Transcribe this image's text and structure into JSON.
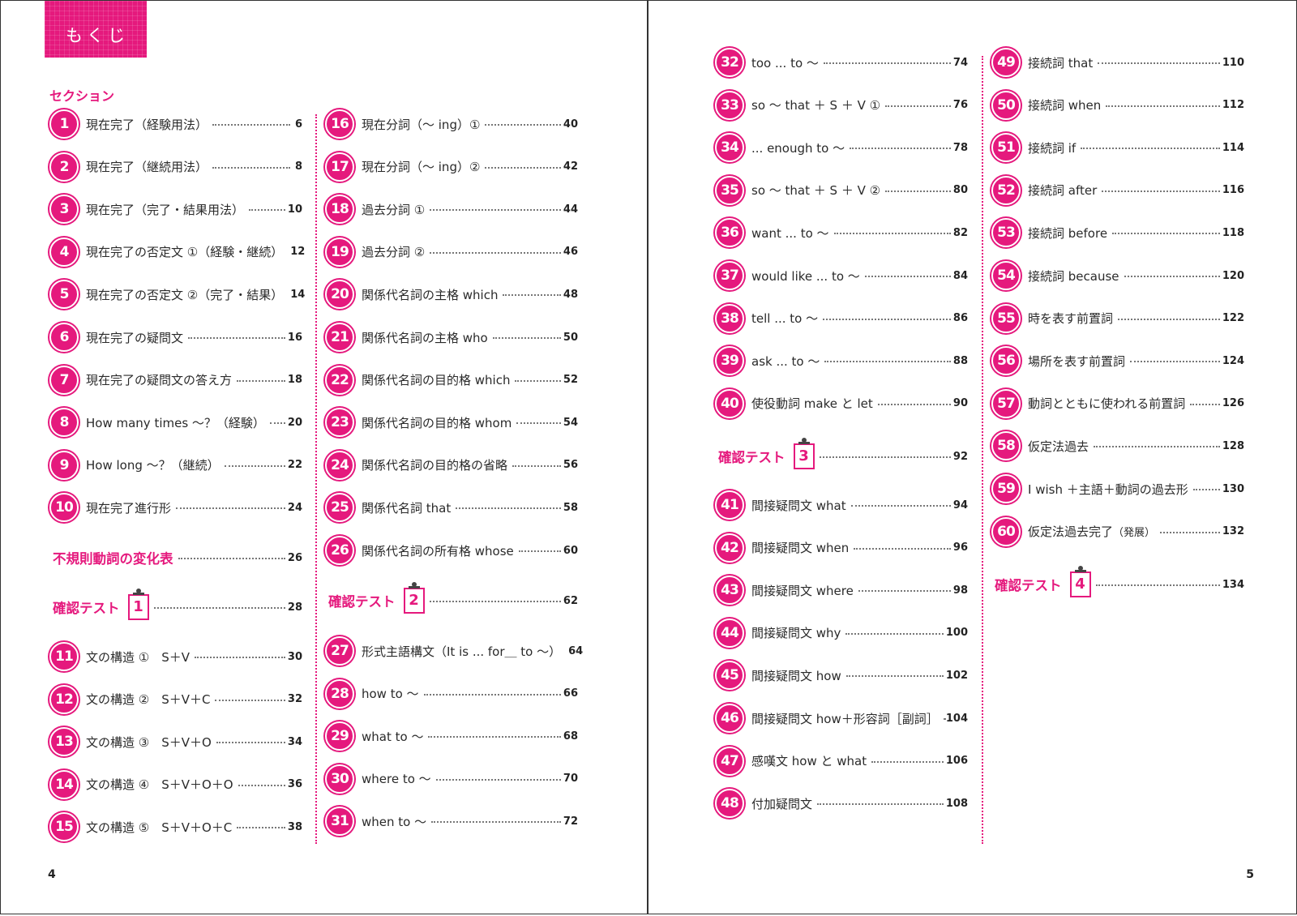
{
  "header": {
    "title": "もくじ"
  },
  "section_label": "セクション",
  "left_col1": [
    {
      "num": "1",
      "title": "現在完了（経験用法）",
      "page": "6"
    },
    {
      "num": "2",
      "title": "現在完了（継続用法）",
      "page": "8"
    },
    {
      "num": "3",
      "title": "現在完了（完了・結果用法）",
      "page": "10"
    },
    {
      "num": "4",
      "title": "現在完了の否定文 ①（経験・継続）",
      "page": "12"
    },
    {
      "num": "5",
      "title": "現在完了の否定文 ②（完了・結果）",
      "page": "14"
    },
    {
      "num": "6",
      "title": "現在完了の疑問文",
      "page": "16"
    },
    {
      "num": "7",
      "title": "現在完了の疑問文の答え方",
      "page": "18"
    },
    {
      "num": "8",
      "title": "How many times ～？（経験）",
      "page": "20"
    },
    {
      "num": "9",
      "title": "How long ～？（継続）",
      "page": "22"
    },
    {
      "num": "10",
      "title": "現在完了進行形",
      "page": "24"
    }
  ],
  "irregular_verbs": {
    "title": "不規則動詞の変化表",
    "page": "26"
  },
  "test1": {
    "label": "確認テスト",
    "num": "1",
    "page": "28"
  },
  "left_col1_b": [
    {
      "num": "11",
      "title": "文の構造 ①　S＋V",
      "page": "30"
    },
    {
      "num": "12",
      "title": "文の構造 ②　S＋V＋C",
      "page": "32"
    },
    {
      "num": "13",
      "title": "文の構造 ③　S＋V＋O",
      "page": "34"
    },
    {
      "num": "14",
      "title": "文の構造 ④　S＋V＋O＋O",
      "page": "36"
    },
    {
      "num": "15",
      "title": "文の構造 ⑤　S＋V＋O＋C",
      "page": "38"
    }
  ],
  "left_col2": [
    {
      "num": "16",
      "title": "現在分詞（～ ing）①",
      "page": "40"
    },
    {
      "num": "17",
      "title": "現在分詞（～ ing）②",
      "page": "42"
    },
    {
      "num": "18",
      "title": "過去分詞 ①",
      "page": "44"
    },
    {
      "num": "19",
      "title": "過去分詞 ②",
      "page": "46"
    },
    {
      "num": "20",
      "title": "関係代名詞の主格 which",
      "page": "48"
    },
    {
      "num": "21",
      "title": "関係代名詞の主格 who",
      "page": "50"
    },
    {
      "num": "22",
      "title": "関係代名詞の目的格 which",
      "page": "52"
    },
    {
      "num": "23",
      "title": "関係代名詞の目的格 whom",
      "page": "54"
    },
    {
      "num": "24",
      "title": "関係代名詞の目的格の省略",
      "page": "56"
    },
    {
      "num": "25",
      "title": "関係代名詞 that",
      "page": "58"
    },
    {
      "num": "26",
      "title": "関係代名詞の所有格 whose",
      "page": "60"
    }
  ],
  "test2": {
    "label": "確認テスト",
    "num": "2",
    "page": "62"
  },
  "left_col2_b": [
    {
      "num": "27",
      "title": "形式主語構文（It is ... for＿ to ～）",
      "page": "64"
    },
    {
      "num": "28",
      "title": "how to ～",
      "page": "66"
    },
    {
      "num": "29",
      "title": "what to ～",
      "page": "68"
    },
    {
      "num": "30",
      "title": "where to ～",
      "page": "70"
    },
    {
      "num": "31",
      "title": "when to ～",
      "page": "72"
    }
  ],
  "right_col1": [
    {
      "num": "32",
      "title": "too ... to ～",
      "page": "74"
    },
    {
      "num": "33",
      "title": "so ～ that ＋ S ＋ V ①",
      "page": "76"
    },
    {
      "num": "34",
      "title": "... enough to ～",
      "page": "78"
    },
    {
      "num": "35",
      "title": "so ～ that ＋ S ＋ V ②",
      "page": "80"
    },
    {
      "num": "36",
      "title": "want ... to ～",
      "page": "82"
    },
    {
      "num": "37",
      "title": "would like ... to ～",
      "page": "84"
    },
    {
      "num": "38",
      "title": "tell ... to ～",
      "page": "86"
    },
    {
      "num": "39",
      "title": "ask ... to ～",
      "page": "88"
    },
    {
      "num": "40",
      "title": "使役動詞 make と let",
      "page": "90"
    }
  ],
  "test3": {
    "label": "確認テスト",
    "num": "3",
    "page": "92"
  },
  "right_col1_b": [
    {
      "num": "41",
      "title": "間接疑問文 what",
      "page": "94"
    },
    {
      "num": "42",
      "title": "間接疑問文 when",
      "page": "96"
    },
    {
      "num": "43",
      "title": "間接疑問文 where",
      "page": "98"
    },
    {
      "num": "44",
      "title": "間接疑問文 why",
      "page": "100"
    },
    {
      "num": "45",
      "title": "間接疑問文 how",
      "page": "102"
    },
    {
      "num": "46",
      "title": "間接疑問文 how＋形容詞［副詞］",
      "page": "104"
    },
    {
      "num": "47",
      "title": "感嘆文 how と what",
      "page": "106"
    },
    {
      "num": "48",
      "title": "付加疑問文",
      "page": "108"
    }
  ],
  "right_col2": [
    {
      "num": "49",
      "title": "接続詞 that",
      "page": "110"
    },
    {
      "num": "50",
      "title": "接続詞 when",
      "page": "112"
    },
    {
      "num": "51",
      "title": "接続詞 if",
      "page": "114"
    },
    {
      "num": "52",
      "title": "接続詞 after",
      "page": "116"
    },
    {
      "num": "53",
      "title": "接続詞 before",
      "page": "118"
    },
    {
      "num": "54",
      "title": "接続詞 because",
      "page": "120"
    },
    {
      "num": "55",
      "title": "時を表す前置詞",
      "page": "122"
    },
    {
      "num": "56",
      "title": "場所を表す前置詞",
      "page": "124"
    },
    {
      "num": "57",
      "title": "動詞とともに使われる前置詞",
      "page": "126"
    },
    {
      "num": "58",
      "title": "仮定法過去",
      "page": "128"
    },
    {
      "num": "59",
      "title": "I wish ＋主語＋動詞の過去形",
      "page": "130"
    },
    {
      "num": "60",
      "title": "仮定法過去完了",
      "title_sub": "（発展）",
      "page": "132"
    }
  ],
  "test4": {
    "label": "確認テスト",
    "num": "4",
    "page": "134"
  },
  "folios": {
    "left": "4",
    "right": "5"
  },
  "colors": {
    "accent": "#e5197d",
    "text": "#222222"
  }
}
